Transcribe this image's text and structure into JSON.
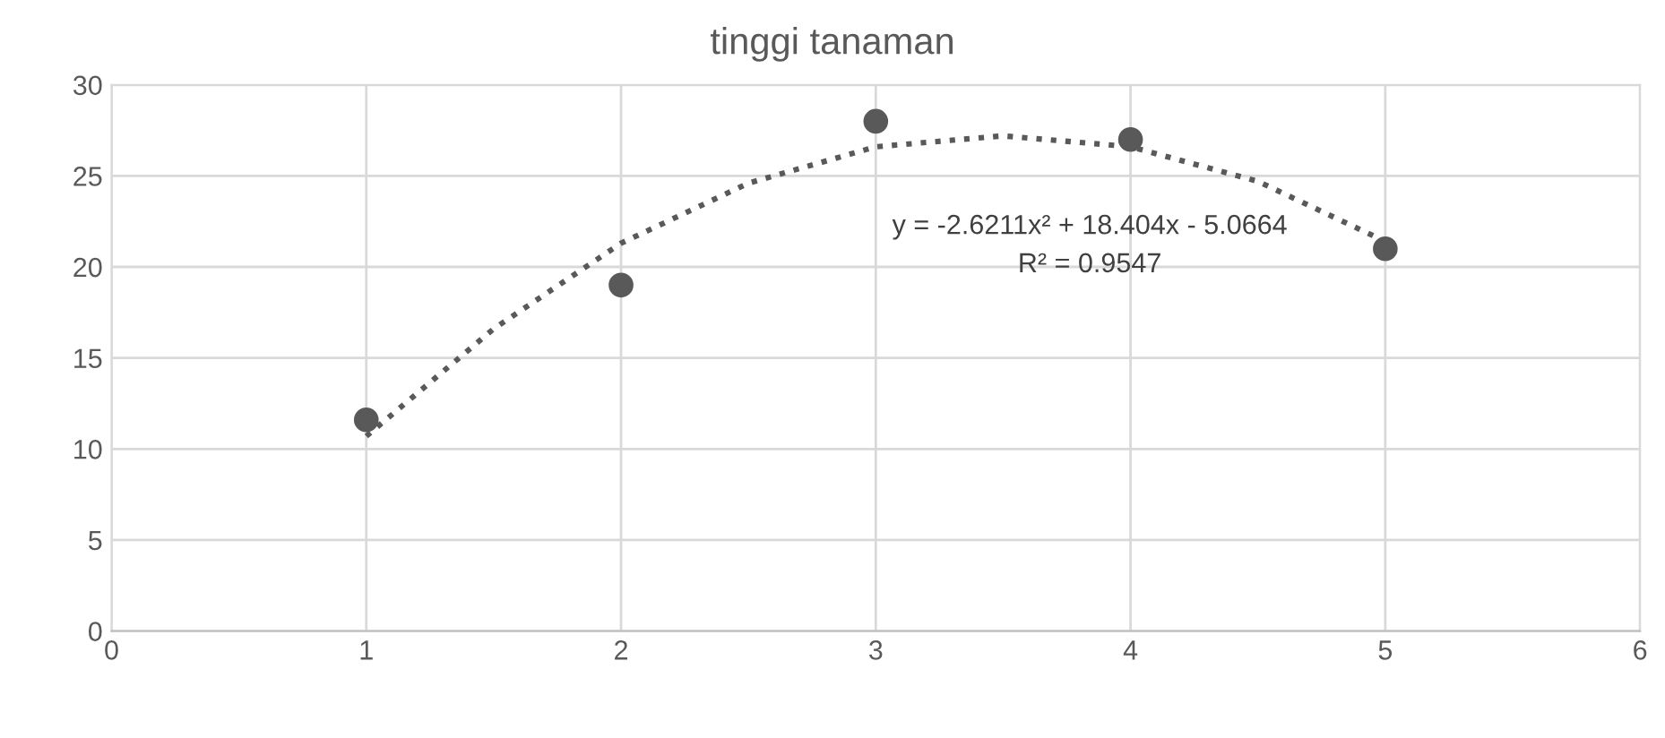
{
  "chart_data": {
    "type": "scatter",
    "title": "tinggi tanaman",
    "series": [
      {
        "color": "#595959",
        "marker": "circle",
        "x": [
          1,
          2,
          3,
          4,
          5
        ],
        "values": [
          11.6,
          19,
          28,
          27,
          21
        ]
      },
      {
        "type": "line",
        "color": "#595959",
        "marker": "none",
        "line_style": "dotted",
        "x": [
          1,
          1.5,
          2,
          2.5,
          3,
          3.5,
          4,
          4.5,
          5
        ],
        "values": [
          10.7,
          16.6,
          21.3,
          24.6,
          26.6,
          27.2,
          26.6,
          24.7,
          21.4
        ]
      }
    ],
    "annotations": [
      "y = -2.6211x² + 18.404x - 5.0664",
      "R² = 0.9547"
    ],
    "xlim": [
      0,
      6
    ],
    "xticks": [
      0,
      1,
      2,
      3,
      4,
      5,
      6
    ],
    "ylim": [
      0,
      30
    ],
    "yticks": [
      0,
      5,
      10,
      15,
      20,
      25,
      30
    ],
    "grid": true,
    "legend": false
  }
}
